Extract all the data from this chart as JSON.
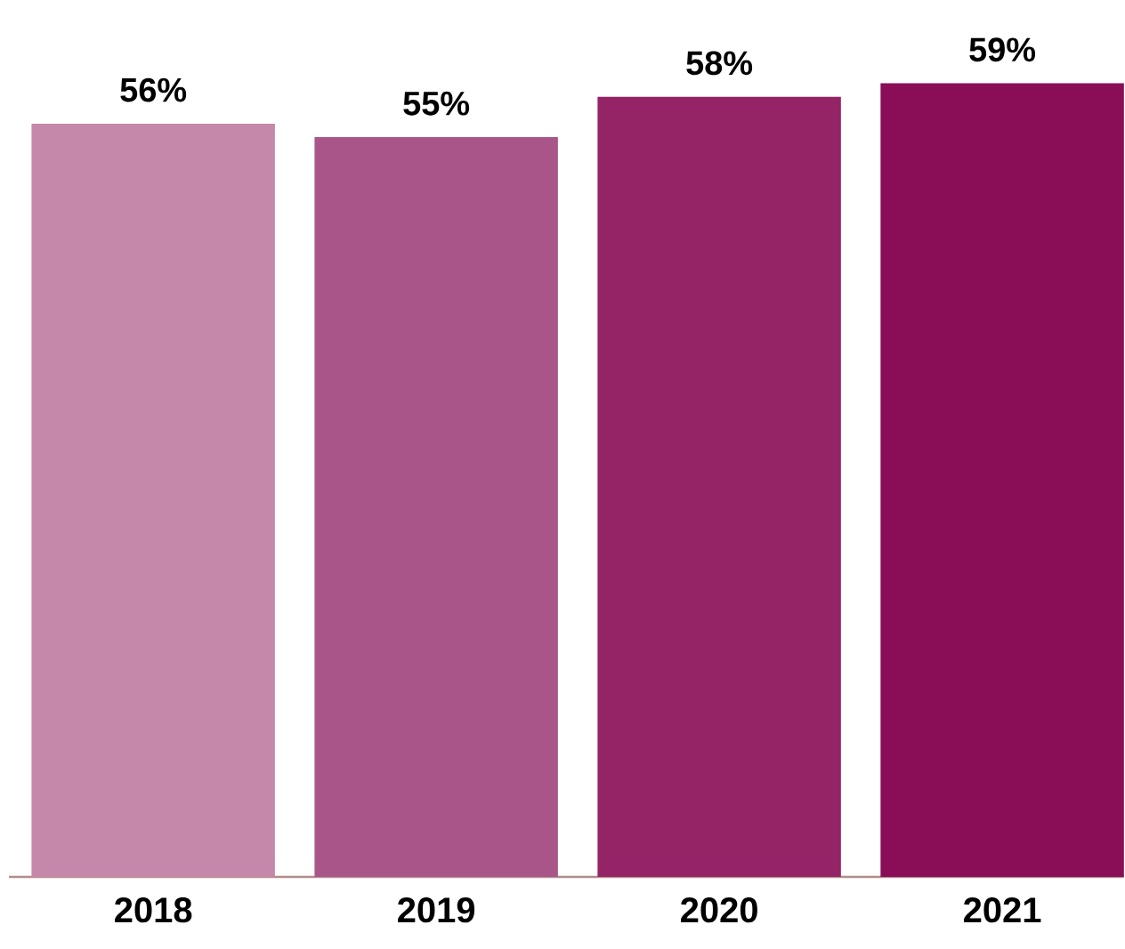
{
  "chart_data": {
    "type": "bar",
    "categories": [
      "2018",
      "2019",
      "2020",
      "2021"
    ],
    "values": [
      56,
      55,
      58,
      59
    ],
    "colors": [
      "#c587aa",
      "#a9558a",
      "#952466",
      "#890d57"
    ],
    "value_labels": [
      "56%",
      "55%",
      "58%",
      "59%"
    ],
    "tick_labels": "x"
  }
}
